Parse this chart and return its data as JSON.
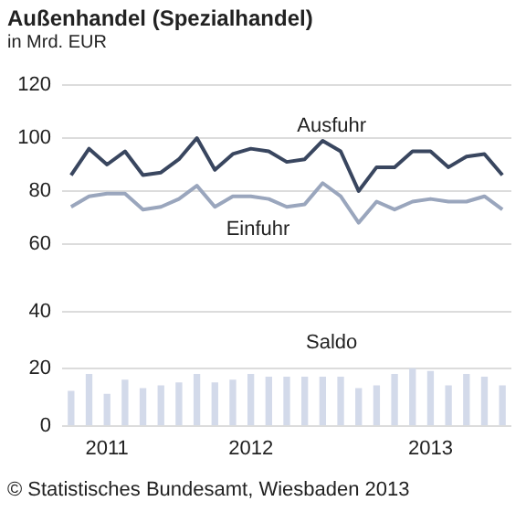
{
  "chart_data": [
    {
      "type": "line",
      "title": "Außenhandel (Spezialhandel)",
      "subtitle": "in Mrd. EUR",
      "categories": [
        null,
        null,
        null,
        null,
        null,
        null,
        null,
        null,
        null,
        null,
        null,
        null,
        null,
        null,
        null,
        null,
        null,
        null,
        null,
        null,
        null,
        null,
        null,
        null,
        null
      ],
      "series": [
        {
          "name": "Ausfuhr",
          "color": "#39465f",
          "values": [
            86,
            96,
            90,
            95,
            86,
            87,
            92,
            100,
            88,
            94,
            96,
            95,
            91,
            92,
            99,
            95,
            80,
            89,
            89,
            95,
            95,
            89,
            93,
            94,
            86
          ]
        },
        {
          "name": "Einfuhr",
          "color": "#9aa6bd",
          "values": [
            74,
            78,
            79,
            79,
            73,
            74,
            77,
            82,
            74,
            78,
            78,
            77,
            74,
            75,
            83,
            78,
            68,
            76,
            73,
            76,
            77,
            76,
            76,
            78,
            73
          ]
        }
      ],
      "ylim": [
        60,
        120
      ],
      "yticks": [
        60,
        80,
        100,
        120
      ],
      "grid": "y",
      "tick_labels": "y",
      "marker": "none"
    },
    {
      "type": "bar",
      "categories": [
        null,
        null,
        "2011",
        null,
        null,
        null,
        null,
        null,
        null,
        null,
        "2012",
        null,
        null,
        null,
        null,
        null,
        null,
        null,
        null,
        null,
        "2013",
        null,
        null,
        null,
        null
      ],
      "series": [
        {
          "name": "Saldo",
          "color": "#d3daea",
          "values": [
            12,
            18,
            11,
            16,
            13,
            14,
            15,
            18,
            15,
            16,
            18,
            17,
            17,
            17,
            17,
            17,
            13,
            14,
            18,
            20,
            19,
            14,
            18,
            17,
            14
          ]
        }
      ],
      "ylim": [
        0,
        40
      ],
      "yticks": [
        0,
        20,
        40
      ],
      "grid": "y",
      "annotations": [
        "© Statistisches Bundesamt, Wiesbaden 2013"
      ]
    }
  ]
}
